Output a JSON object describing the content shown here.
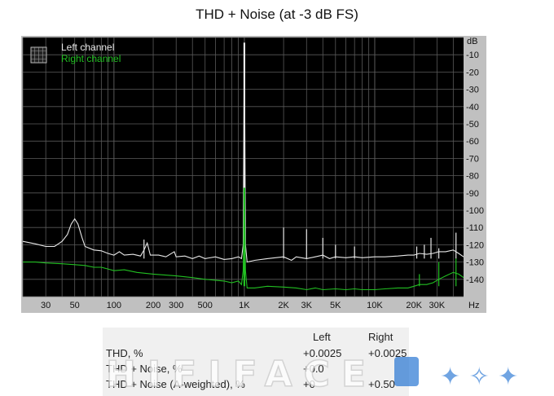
{
  "chart_data": {
    "type": "line",
    "title": "THD + Noise (at -3 dB FS)",
    "x_scale": "log",
    "xlim": [
      20,
      48000
    ],
    "ylim": [
      -150,
      0
    ],
    "y_unit": "dB",
    "x_unit": "Hz",
    "x_tick_labels": [
      {
        "value": 30,
        "label": "30"
      },
      {
        "value": 50,
        "label": "50"
      },
      {
        "value": 100,
        "label": "100"
      },
      {
        "value": 200,
        "label": "200"
      },
      {
        "value": 300,
        "label": "300"
      },
      {
        "value": 500,
        "label": "500"
      },
      {
        "value": 1000,
        "label": "1K"
      },
      {
        "value": 2000,
        "label": "2K"
      },
      {
        "value": 3000,
        "label": "3K"
      },
      {
        "value": 5000,
        "label": "5K"
      },
      {
        "value": 10000,
        "label": "10K"
      },
      {
        "value": 20000,
        "label": "20K"
      },
      {
        "value": 30000,
        "label": "30K"
      }
    ],
    "y_tick_labels": [
      {
        "value": -10,
        "label": "-10"
      },
      {
        "value": -20,
        "label": "-20"
      },
      {
        "value": -30,
        "label": "-30"
      },
      {
        "value": -40,
        "label": "-40"
      },
      {
        "value": -50,
        "label": "-50"
      },
      {
        "value": -60,
        "label": "-60"
      },
      {
        "value": -70,
        "label": "-70"
      },
      {
        "value": -80,
        "label": "-80"
      },
      {
        "value": -90,
        "label": "-90"
      },
      {
        "value": -100,
        "label": "-100"
      },
      {
        "value": -110,
        "label": "-110"
      },
      {
        "value": -120,
        "label": "-120"
      },
      {
        "value": -130,
        "label": "-130"
      },
      {
        "value": -140,
        "label": "-140"
      }
    ],
    "grid": true,
    "legend_position": "top-left",
    "background": "#000000",
    "series": [
      {
        "name": "Left channel",
        "color": "#e8e8e8",
        "points": [
          [
            20,
            -118
          ],
          [
            25,
            -119.5
          ],
          [
            30,
            -121
          ],
          [
            35,
            -121
          ],
          [
            40,
            -118
          ],
          [
            44,
            -114
          ],
          [
            47,
            -108
          ],
          [
            50,
            -105
          ],
          [
            53,
            -108
          ],
          [
            57,
            -116
          ],
          [
            60,
            -121
          ],
          [
            70,
            -123
          ],
          [
            80,
            -123.5
          ],
          [
            90,
            -125
          ],
          [
            100,
            -126
          ],
          [
            110,
            -124
          ],
          [
            120,
            -126
          ],
          [
            140,
            -125.5
          ],
          [
            160,
            -126.5
          ],
          [
            170,
            -123
          ],
          [
            180,
            -119
          ],
          [
            190,
            -126
          ],
          [
            220,
            -126
          ],
          [
            250,
            -127
          ],
          [
            290,
            -124
          ],
          [
            300,
            -127
          ],
          [
            350,
            -126.5
          ],
          [
            400,
            -128
          ],
          [
            450,
            -126.5
          ],
          [
            500,
            -128
          ],
          [
            600,
            -127
          ],
          [
            700,
            -128.5
          ],
          [
            800,
            -128
          ],
          [
            900,
            -127
          ],
          [
            950,
            -128
          ],
          [
            980,
            -120
          ],
          [
            1000,
            -3
          ],
          [
            1020,
            -120
          ],
          [
            1050,
            -130
          ],
          [
            1200,
            -129
          ],
          [
            1500,
            -128
          ],
          [
            2000,
            -127
          ],
          [
            2300,
            -129
          ],
          [
            2500,
            -127
          ],
          [
            3000,
            -128
          ],
          [
            3500,
            -127
          ],
          [
            4000,
            -126
          ],
          [
            4500,
            -128
          ],
          [
            5000,
            -127
          ],
          [
            6000,
            -127.5
          ],
          [
            7000,
            -127
          ],
          [
            8000,
            -127.5
          ],
          [
            10000,
            -127
          ],
          [
            12000,
            -127
          ],
          [
            15000,
            -126.5
          ],
          [
            18000,
            -126
          ],
          [
            20000,
            -126
          ],
          [
            22000,
            -125
          ],
          [
            25000,
            -125.5
          ],
          [
            28000,
            -125
          ],
          [
            31000,
            -124
          ],
          [
            35000,
            -124
          ],
          [
            40000,
            -123
          ],
          [
            44000,
            -125
          ],
          [
            48000,
            -127
          ]
        ],
        "peaks": [
          {
            "x": 1000,
            "y": -3
          },
          {
            "x": 2000,
            "y": -110
          },
          {
            "x": 3000,
            "y": -111
          },
          {
            "x": 4000,
            "y": -116
          },
          {
            "x": 5000,
            "y": -120
          },
          {
            "x": 7000,
            "y": -121
          },
          {
            "x": 170,
            "y": -117
          },
          {
            "x": 21000,
            "y": -121
          },
          {
            "x": 24000,
            "y": -120
          },
          {
            "x": 27000,
            "y": -116
          },
          {
            "x": 31000,
            "y": -122
          },
          {
            "x": 42000,
            "y": -113
          }
        ]
      },
      {
        "name": "Right channel",
        "color": "#22c022",
        "points": [
          [
            20,
            -130
          ],
          [
            25,
            -130
          ],
          [
            30,
            -130.5
          ],
          [
            40,
            -131
          ],
          [
            50,
            -131.5
          ],
          [
            60,
            -132
          ],
          [
            70,
            -133
          ],
          [
            80,
            -133
          ],
          [
            90,
            -134
          ],
          [
            100,
            -135
          ],
          [
            120,
            -134.5
          ],
          [
            150,
            -136
          ],
          [
            200,
            -137
          ],
          [
            300,
            -138
          ],
          [
            400,
            -139
          ],
          [
            500,
            -140
          ],
          [
            600,
            -140.5
          ],
          [
            700,
            -141
          ],
          [
            800,
            -142
          ],
          [
            900,
            -141
          ],
          [
            950,
            -143
          ],
          [
            980,
            -135
          ],
          [
            1000,
            -87
          ],
          [
            1020,
            -135
          ],
          [
            1050,
            -145
          ],
          [
            1200,
            -145
          ],
          [
            1500,
            -144
          ],
          [
            2000,
            -144.5
          ],
          [
            2500,
            -145
          ],
          [
            3000,
            -146
          ],
          [
            3500,
            -145
          ],
          [
            4000,
            -146
          ],
          [
            5000,
            -145.5
          ],
          [
            6000,
            -146
          ],
          [
            7000,
            -145.5
          ],
          [
            8000,
            -146
          ],
          [
            10000,
            -146
          ],
          [
            12000,
            -145.5
          ],
          [
            15000,
            -145
          ],
          [
            18000,
            -145
          ],
          [
            20000,
            -144
          ],
          [
            22000,
            -143
          ],
          [
            25000,
            -143
          ],
          [
            28000,
            -142
          ],
          [
            31000,
            -140
          ],
          [
            35000,
            -138
          ],
          [
            40000,
            -136
          ],
          [
            44000,
            -137
          ],
          [
            48000,
            -139
          ]
        ],
        "peaks": [
          {
            "x": 1000,
            "y": -87
          },
          {
            "x": 22000,
            "y": -137
          },
          {
            "x": 31000,
            "y": -130
          },
          {
            "x": 42000,
            "y": -128
          }
        ]
      }
    ]
  },
  "stats_table": {
    "columns": [
      "",
      "Left",
      "Right"
    ],
    "rows": [
      {
        "label": "THD, %",
        "left": "+0.0025",
        "right": "+0.0025"
      },
      {
        "label": "THD + Noise, %",
        "left": "+0.0",
        "right": ""
      },
      {
        "label": "THD + Noise (A-weighted), %",
        "left": "+0",
        "right": "+0.50"
      }
    ]
  },
  "watermark": {
    "text": "HIFIFACE"
  }
}
